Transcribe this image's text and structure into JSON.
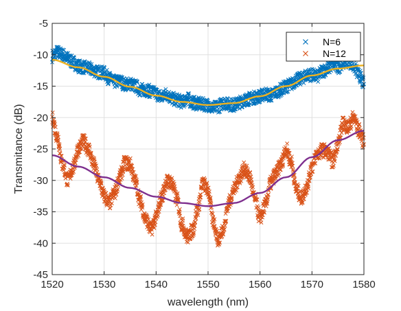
{
  "chart_data": {
    "type": "scatter",
    "xlabel": "wavelength (nm)",
    "ylabel": "Transmitance (dB)",
    "xlim": [
      1520,
      1580
    ],
    "ylim": [
      -45,
      -5
    ],
    "xticks": [
      1520,
      1530,
      1540,
      1550,
      1560,
      1570,
      1580
    ],
    "yticks": [
      -45,
      -40,
      -35,
      -30,
      -25,
      -20,
      -15,
      -10,
      -5
    ],
    "grid": true,
    "legend_position": "top-right",
    "series": [
      {
        "name": "N=6",
        "marker": "x",
        "color": "#0072BD",
        "points": [
          [
            1520,
            -10.2
          ],
          [
            1521,
            -9.6
          ],
          [
            1522,
            -10.0
          ],
          [
            1523,
            -10.6
          ],
          [
            1524,
            -11.2
          ],
          [
            1525,
            -11.8
          ],
          [
            1526,
            -12.0
          ],
          [
            1527,
            -12.2
          ],
          [
            1528,
            -12.5
          ],
          [
            1529,
            -12.8
          ],
          [
            1530,
            -12.9
          ],
          [
            1531,
            -13.8
          ],
          [
            1532,
            -14.3
          ],
          [
            1533,
            -14.2
          ],
          [
            1534,
            -14.7
          ],
          [
            1535,
            -14.6
          ],
          [
            1536,
            -15.0
          ],
          [
            1537,
            -15.6
          ],
          [
            1538,
            -15.6
          ],
          [
            1539,
            -15.8
          ],
          [
            1540,
            -16.2
          ],
          [
            1541,
            -16.8
          ],
          [
            1542,
            -16.2
          ],
          [
            1543,
            -17.0
          ],
          [
            1544,
            -17.2
          ],
          [
            1545,
            -17.5
          ],
          [
            1546,
            -17.0
          ],
          [
            1547,
            -17.6
          ],
          [
            1548,
            -17.8
          ],
          [
            1549,
            -17.9
          ],
          [
            1550,
            -18.0
          ],
          [
            1551,
            -18.5
          ],
          [
            1552,
            -18.2
          ],
          [
            1553,
            -17.6
          ],
          [
            1554,
            -17.9
          ],
          [
            1555,
            -18.0
          ],
          [
            1556,
            -17.6
          ],
          [
            1557,
            -17.2
          ],
          [
            1558,
            -17.0
          ],
          [
            1559,
            -16.8
          ],
          [
            1560,
            -16.6
          ],
          [
            1561,
            -16.2
          ],
          [
            1562,
            -16.5
          ],
          [
            1563,
            -16.0
          ],
          [
            1564,
            -15.6
          ],
          [
            1565,
            -15.0
          ],
          [
            1566,
            -14.7
          ],
          [
            1567,
            -14.0
          ],
          [
            1568,
            -13.8
          ],
          [
            1569,
            -13.2
          ],
          [
            1570,
            -13.2
          ],
          [
            1571,
            -13.5
          ],
          [
            1572,
            -12.6
          ],
          [
            1573,
            -12.2
          ],
          [
            1574,
            -11.6
          ],
          [
            1575,
            -12.0
          ],
          [
            1576,
            -11.2
          ],
          [
            1577,
            -11.0
          ],
          [
            1578,
            -11.8
          ],
          [
            1579,
            -13.2
          ],
          [
            1580,
            -14.6
          ]
        ],
        "spread": 1.0
      },
      {
        "name": "N=12",
        "marker": "x",
        "color": "#D95319",
        "points": [
          [
            1520,
            -20.2
          ],
          [
            1521,
            -23.0
          ],
          [
            1522,
            -27.5
          ],
          [
            1523,
            -30.0
          ],
          [
            1524,
            -28.0
          ],
          [
            1525,
            -25.0
          ],
          [
            1526,
            -23.8
          ],
          [
            1527,
            -25.0
          ],
          [
            1528,
            -27.5
          ],
          [
            1529,
            -30.0
          ],
          [
            1530,
            -32.5
          ],
          [
            1531,
            -33.6
          ],
          [
            1532,
            -32.0
          ],
          [
            1533,
            -29.5
          ],
          [
            1534,
            -27.2
          ],
          [
            1535,
            -27.5
          ],
          [
            1536,
            -30.2
          ],
          [
            1537,
            -33.5
          ],
          [
            1538,
            -36.2
          ],
          [
            1539,
            -37.8
          ],
          [
            1540,
            -36.0
          ],
          [
            1541,
            -32.8
          ],
          [
            1542,
            -30.2
          ],
          [
            1543,
            -30.3
          ],
          [
            1544,
            -33.0
          ],
          [
            1545,
            -37.0
          ],
          [
            1546,
            -39.0
          ],
          [
            1547,
            -38.0
          ],
          [
            1548,
            -34.5
          ],
          [
            1549,
            -30.5
          ],
          [
            1550,
            -31.5
          ],
          [
            1551,
            -36.5
          ],
          [
            1552,
            -39.5
          ],
          [
            1553,
            -37.5
          ],
          [
            1554,
            -33.5
          ],
          [
            1555,
            -31.5
          ],
          [
            1556,
            -29.5
          ],
          [
            1557,
            -28.2
          ],
          [
            1558,
            -29.5
          ],
          [
            1559,
            -33.0
          ],
          [
            1560,
            -36.0
          ],
          [
            1561,
            -34.0
          ],
          [
            1562,
            -30.5
          ],
          [
            1563,
            -29.0
          ],
          [
            1564,
            -27.5
          ],
          [
            1565,
            -25.0
          ],
          [
            1566,
            -27.0
          ],
          [
            1567,
            -31.5
          ],
          [
            1568,
            -32.8
          ],
          [
            1569,
            -31.0
          ],
          [
            1570,
            -27.8
          ],
          [
            1571,
            -25.8
          ],
          [
            1572,
            -25.2
          ],
          [
            1573,
            -25.5
          ],
          [
            1574,
            -27.0
          ],
          [
            1575,
            -24.0
          ],
          [
            1576,
            -21.0
          ],
          [
            1577,
            -21.5
          ],
          [
            1578,
            -20.0
          ],
          [
            1579,
            -22.0
          ],
          [
            1580,
            -23.8
          ]
        ],
        "spread": 1.1
      },
      {
        "name": "",
        "marker": "line",
        "color": "#EDB120",
        "points": [
          [
            1520,
            -10.8
          ],
          [
            1525,
            -12.0
          ],
          [
            1530,
            -13.5
          ],
          [
            1535,
            -15.1
          ],
          [
            1540,
            -16.5
          ],
          [
            1545,
            -17.5
          ],
          [
            1550,
            -18.0
          ],
          [
            1555,
            -17.7
          ],
          [
            1560,
            -16.6
          ],
          [
            1565,
            -15.0
          ],
          [
            1570,
            -13.3
          ],
          [
            1575,
            -12.2
          ],
          [
            1580,
            -11.7
          ]
        ]
      },
      {
        "name": "",
        "marker": "line",
        "color": "#7E2F8E",
        "points": [
          [
            1520,
            -26.0
          ],
          [
            1525,
            -27.8
          ],
          [
            1530,
            -29.5
          ],
          [
            1535,
            -31.2
          ],
          [
            1540,
            -32.6
          ],
          [
            1545,
            -33.6
          ],
          [
            1550,
            -34.1
          ],
          [
            1555,
            -33.6
          ],
          [
            1560,
            -32.0
          ],
          [
            1565,
            -29.5
          ],
          [
            1570,
            -26.3
          ],
          [
            1575,
            -23.6
          ],
          [
            1580,
            -22.1
          ]
        ]
      }
    ]
  }
}
